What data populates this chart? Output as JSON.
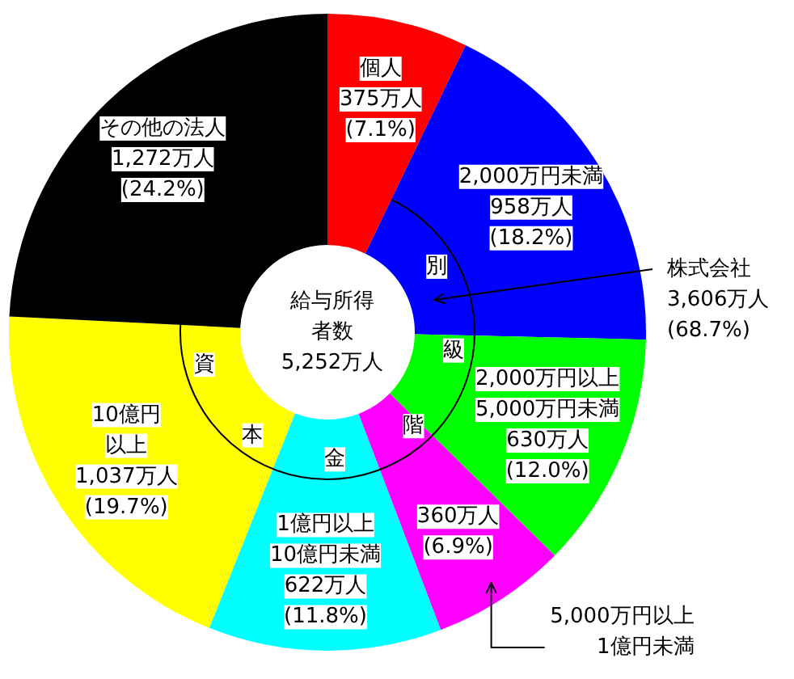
{
  "chart_data": {
    "type": "donut",
    "categories": [
      "個人",
      "2,000万円未満",
      "2,000万円以上\n5,000万円未満",
      "5,000万円以上\n1億円未満",
      "1億円以上\n10億円未満",
      "10億円以上",
      "その他の法人"
    ],
    "values": [
      375,
      958,
      630,
      360,
      622,
      1037,
      1272
    ],
    "colors": [
      "#ff0000",
      "#0000ff",
      "#00ff00",
      "#ff00ff",
      "#00ffff",
      "#ffff00",
      "#000000"
    ],
    "value_labels": [
      "375万人\n(7.1%)",
      "958万人\n(18.2%)",
      "630万人\n(12.0%)",
      "360万人\n(6.9%)",
      "622万人\n(11.8%)",
      "1,037万人\n(19.7%)",
      "1,272万人\n(24.2%)"
    ],
    "annotations": [
      "給与所得者数\n5,252万人",
      "株式会社\n3,606万人\n(68.7%)",
      "資",
      "本",
      "金",
      "階",
      "級",
      "別"
    ]
  }
}
